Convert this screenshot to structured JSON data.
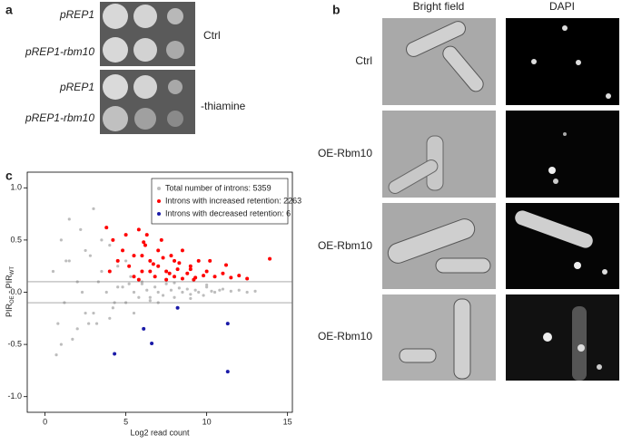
{
  "panel_a": {
    "letter": "a",
    "strains": [
      "pREP1",
      "pREP1-rbm10",
      "pREP1",
      "pREP1-rbm10"
    ],
    "conditions": [
      "Ctrl",
      "-thiamine"
    ]
  },
  "panel_b": {
    "letter": "b",
    "columns": [
      "Bright field",
      "DAPI"
    ],
    "rows": [
      "Ctrl",
      "OE-Rbm10",
      "OE-Rbm10",
      "OE-Rbm10"
    ]
  },
  "panel_c_letter": "c",
  "chart_data": {
    "type": "scatter",
    "xlabel": "Log2 read count",
    "ylabel": {
      "main1": "PIR",
      "sub1": "OE",
      "main2": " - PIR",
      "sub2": "WT"
    },
    "xlim": [
      -1.1,
      15.3
    ],
    "ylim": [
      -1.15,
      1.15
    ],
    "xticks": [
      0,
      5,
      10,
      15
    ],
    "yticks": [
      {
        "value": -1,
        "label": "-1.0"
      },
      {
        "value": -0.5,
        "label": "-0.5"
      },
      {
        "value": 0,
        "label": "0.0"
      },
      {
        "value": 0.5,
        "label": "0.5"
      },
      {
        "value": 1,
        "label": "1.0"
      }
    ],
    "hlines": [
      0.1,
      -0.1
    ],
    "legend": "top-right",
    "series": [
      {
        "name": "Total number of introns: 5359",
        "color": "#bdbdbd",
        "x": [
          0.5,
          0.8,
          1.0,
          1.2,
          1.5,
          1.7,
          2.0,
          2.2,
          2.5,
          2.8,
          3.0,
          3.2,
          3.5,
          3.8,
          4.0,
          4.2,
          4.5,
          4.8,
          5.0,
          5.3,
          5.5,
          5.8,
          6.0,
          6.3,
          6.5,
          6.8,
          7.0,
          7.3,
          7.5,
          7.8,
          8.0,
          8.3,
          8.5,
          8.8,
          9.0,
          9.3,
          9.5,
          9.8,
          10.0,
          10.3,
          10.5,
          10.8,
          11.0,
          11.5,
          12.0,
          12.5,
          13.0,
          1.0,
          1.5,
          2.0,
          2.5,
          3.0,
          3.5,
          4.0,
          4.5,
          5.0,
          5.5,
          6.0,
          7.0,
          8.0,
          9.0,
          10.0,
          2.3,
          3.3,
          1.3,
          0.7,
          2.7,
          4.3,
          5.2,
          6.5
        ],
        "values": [
          0.2,
          -0.3,
          0.5,
          -0.1,
          0.3,
          -0.45,
          0.1,
          0.6,
          -0.2,
          0.35,
          0.8,
          -0.3,
          0.5,
          0.0,
          0.45,
          -0.15,
          0.25,
          0.05,
          -0.1,
          0.15,
          0.0,
          -0.05,
          0.1,
          0.02,
          -0.08,
          0.05,
          0.0,
          -0.03,
          0.08,
          0.02,
          -0.05,
          0.04,
          0.0,
          0.03,
          -0.02,
          0.02,
          0.0,
          -0.03,
          0.05,
          0.01,
          0.0,
          0.02,
          0.03,
          0.01,
          0.02,
          0.0,
          0.01,
          -0.5,
          0.7,
          -0.35,
          0.4,
          -0.2,
          0.2,
          -0.25,
          0.05,
          0.3,
          -0.2,
          0.08,
          -0.1,
          0.09,
          -0.06,
          0.07,
          0.0,
          0.1,
          0.3,
          -0.6,
          -0.3,
          -0.1,
          0.08,
          -0.05
        ]
      },
      {
        "name": "Introns with increased retention: 2263",
        "color": "#ff0000",
        "x": [
          3.8,
          4.2,
          4.5,
          4.8,
          5.0,
          5.2,
          5.5,
          5.8,
          6.0,
          6.2,
          6.5,
          6.8,
          7.0,
          7.2,
          7.5,
          7.8,
          8.0,
          8.3,
          8.5,
          8.8,
          9.0,
          9.3,
          9.5,
          9.8,
          10.0,
          10.5,
          11.0,
          11.5,
          12.0,
          12.5,
          13.9,
          5.5,
          6.0,
          6.5,
          7.0,
          7.5,
          8.0,
          8.5,
          9.0,
          6.3,
          6.7,
          7.3,
          7.7,
          5.8,
          8.2,
          9.2,
          10.2,
          4.0,
          11.2,
          6.1
        ],
        "values": [
          0.62,
          0.5,
          0.3,
          0.4,
          0.55,
          0.25,
          0.35,
          0.6,
          0.2,
          0.45,
          0.3,
          0.15,
          0.25,
          0.5,
          0.2,
          0.35,
          0.15,
          0.28,
          0.4,
          0.18,
          0.22,
          0.14,
          0.3,
          0.16,
          0.2,
          0.15,
          0.18,
          0.14,
          0.16,
          0.13,
          0.32,
          0.15,
          0.35,
          0.2,
          0.4,
          0.12,
          0.3,
          0.13,
          0.25,
          0.55,
          0.27,
          0.33,
          0.18,
          0.12,
          0.22,
          0.12,
          0.3,
          0.2,
          0.26,
          0.48
        ]
      },
      {
        "name": "Introns with decreased retention: 6",
        "color": "#1a1aa8",
        "x": [
          4.3,
          6.1,
          6.6,
          8.2,
          11.3,
          11.3
        ],
        "values": [
          -0.59,
          -0.35,
          -0.49,
          -0.15,
          -0.3,
          -0.76
        ]
      }
    ]
  }
}
